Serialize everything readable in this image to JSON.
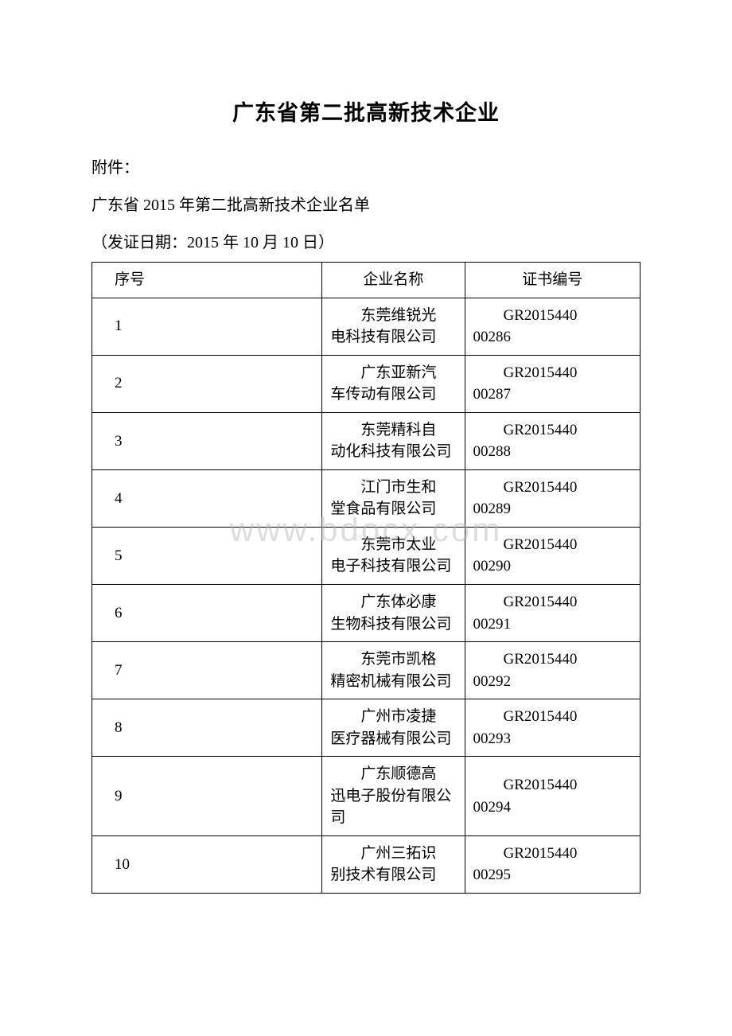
{
  "title": "广东省第二批高新技术企业",
  "attachment_label": "附件：",
  "subtitle": "广东省 2015 年第二批高新技术企业名单",
  "date_line": "（发证日期：2015 年 10 月 10 日）",
  "watermark": "www.bdocx.com",
  "table": {
    "headers": {
      "seq": "序号",
      "name": "企业名称",
      "cert": "证书编号"
    },
    "columns_width_pct": [
      42,
      26,
      32
    ],
    "border_color": "#000000",
    "font_size_pt": 14,
    "rows": [
      {
        "seq": "1",
        "name_l1": "东莞维锐光",
        "name_l2": "电科技有限公司",
        "cert_l1": "GR2015440",
        "cert_l2": "00286"
      },
      {
        "seq": "2",
        "name_l1": "广东亚新汽",
        "name_l2": "车传动有限公司",
        "cert_l1": "GR2015440",
        "cert_l2": "00287"
      },
      {
        "seq": "3",
        "name_l1": "东莞精科自",
        "name_l2": "动化科技有限公司",
        "cert_l1": "GR2015440",
        "cert_l2": "00288"
      },
      {
        "seq": "4",
        "name_l1": "江门市生和",
        "name_l2": "堂食品有限公司",
        "cert_l1": "GR2015440",
        "cert_l2": "00289"
      },
      {
        "seq": "5",
        "name_l1": "东莞市太业",
        "name_l2": "电子科技有限公司",
        "cert_l1": "GR2015440",
        "cert_l2": "00290"
      },
      {
        "seq": "6",
        "name_l1": "广东体必康",
        "name_l2": "生物科技有限公司",
        "cert_l1": "GR2015440",
        "cert_l2": "00291"
      },
      {
        "seq": "7",
        "name_l1": "东莞市凯格",
        "name_l2": "精密机械有限公司",
        "cert_l1": "GR2015440",
        "cert_l2": "00292"
      },
      {
        "seq": "8",
        "name_l1": "广州市凌捷",
        "name_l2": "医疗器械有限公司",
        "cert_l1": "GR2015440",
        "cert_l2": "00293"
      },
      {
        "seq": "9",
        "name_l1": "广东顺德高",
        "name_l2": "迅电子股份有限公司",
        "cert_l1": "GR2015440",
        "cert_l2": "00294"
      },
      {
        "seq": "10",
        "name_l1": "广州三拓识",
        "name_l2": "别技术有限公司",
        "cert_l1": "GR2015440",
        "cert_l2": "00295"
      }
    ]
  },
  "colors": {
    "background": "#ffffff",
    "text": "#000000",
    "watermark": "rgba(180,180,180,0.45)"
  }
}
